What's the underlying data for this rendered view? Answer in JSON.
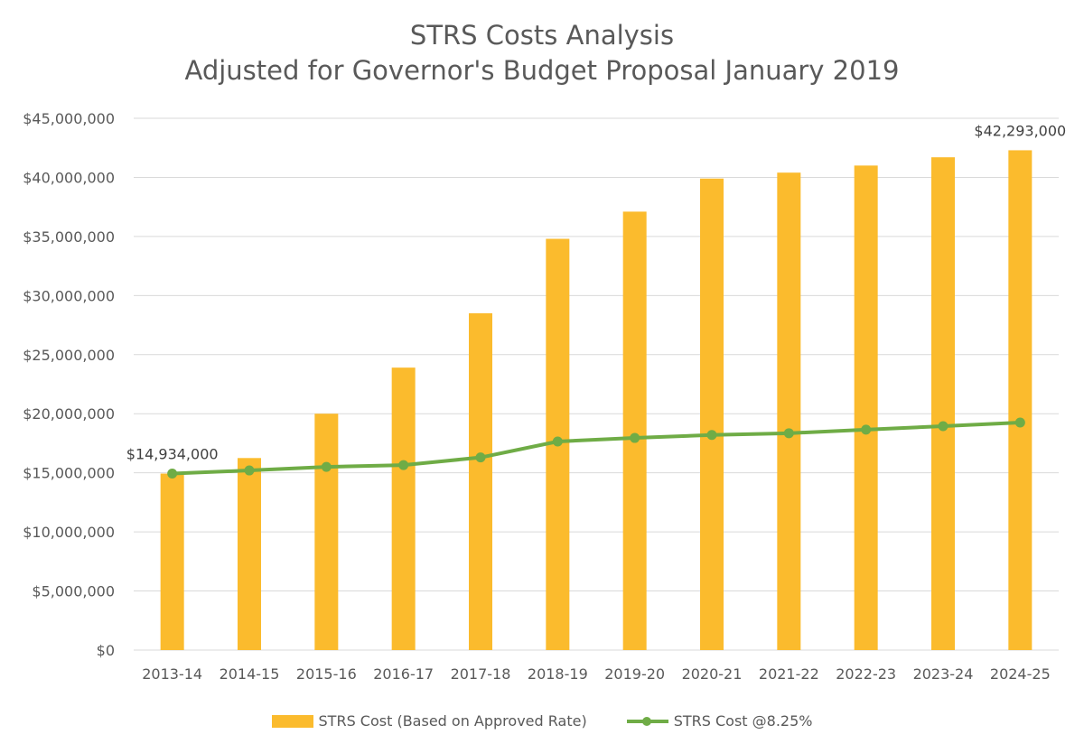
{
  "chart_data": {
    "type": "bar",
    "title": "STRS Costs Analysis",
    "subtitle": "Adjusted for Governor's Budget Proposal January 2019",
    "categories": [
      "2013-14",
      "2014-15",
      "2015-16",
      "2016-17",
      "2017-18",
      "2018-19",
      "2019-20",
      "2020-21",
      "2021-22",
      "2022-23",
      "2023-24",
      "2024-25"
    ],
    "series": [
      {
        "name": "STRS Cost (Based on Approved Rate)",
        "type": "bar",
        "color": "#FBBB2D",
        "values": [
          14934000,
          16250000,
          20000000,
          23900000,
          28500000,
          34800000,
          37100000,
          39900000,
          40400000,
          41000000,
          41700000,
          42293000
        ]
      },
      {
        "name": "STRS Cost @8.25%",
        "type": "line",
        "color": "#6FAC46",
        "values": [
          14934000,
          15200000,
          15500000,
          15650000,
          16300000,
          17650000,
          17950000,
          18200000,
          18350000,
          18650000,
          18950000,
          19250000
        ]
      }
    ],
    "ylim": [
      0,
      45000000
    ],
    "yticks": [
      0,
      5000000,
      10000000,
      15000000,
      20000000,
      25000000,
      30000000,
      35000000,
      40000000,
      45000000
    ],
    "ytick_labels": [
      "$0",
      "$5,000,000",
      "$10,000,000",
      "$15,000,000",
      "$20,000,000",
      "$25,000,000",
      "$30,000,000",
      "$35,000,000",
      "$40,000,000",
      "$45,000,000"
    ],
    "annotations": [
      {
        "text": "$14,934,000",
        "category": "2013-14",
        "value": 14934000
      },
      {
        "text": "$42,293,000",
        "category": "2024-25",
        "value": 42293000
      }
    ],
    "grid": true,
    "legend_position": "bottom"
  }
}
